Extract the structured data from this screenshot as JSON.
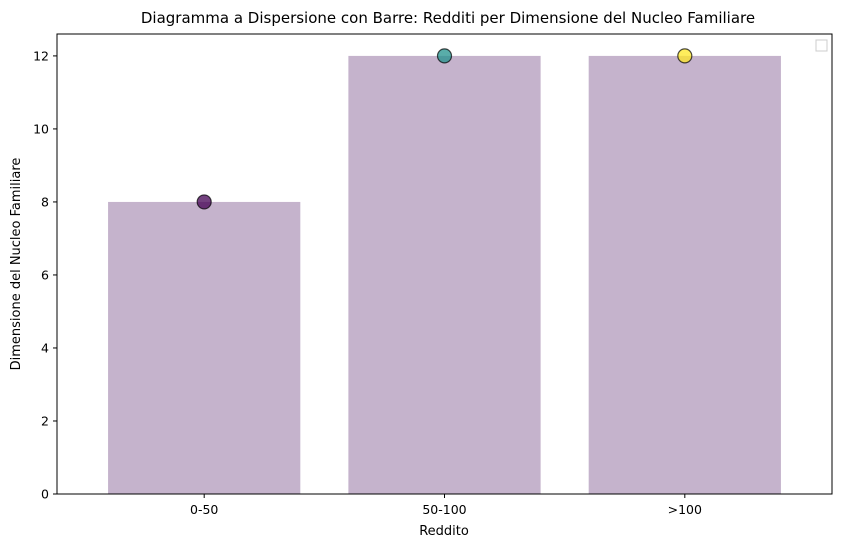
{
  "chart_data": {
    "type": "bar",
    "title": "Diagramma a Dispersione con Barre: Redditi per Dimensione del Nucleo Familiare",
    "xlabel": "Reddito",
    "ylabel": "Dimensione del Nucleo Familiare",
    "categories": [
      "0-50",
      "50-100",
      ">100"
    ],
    "values": [
      8,
      12,
      12
    ],
    "scatter": {
      "values": [
        8,
        12,
        12
      ],
      "colors": [
        "#440154",
        "#21918c",
        "#fde725"
      ]
    },
    "ylim": [
      0,
      12.6
    ],
    "yticks": [
      0,
      2,
      4,
      6,
      8,
      10,
      12
    ],
    "bar_color": "#c5b3cc",
    "legend": "top-right (empty)",
    "grid": false
  }
}
